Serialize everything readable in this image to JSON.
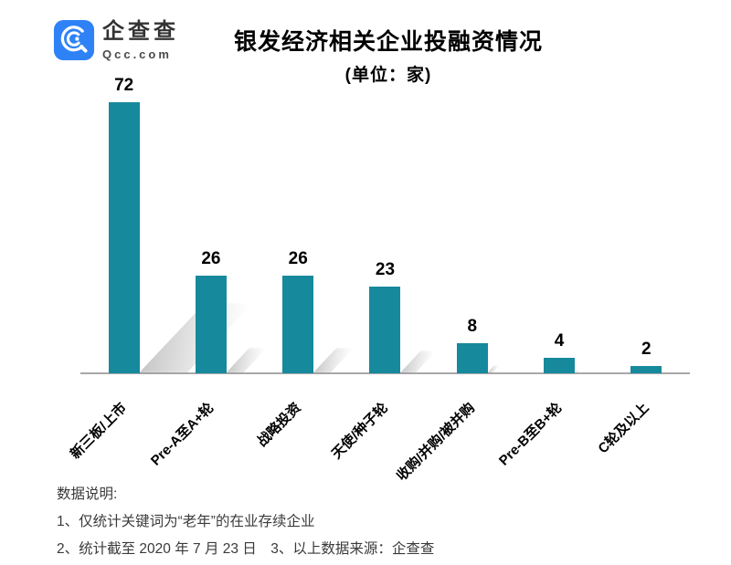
{
  "logo": {
    "name": "企查查",
    "domain": "Qcc.com"
  },
  "header": {
    "title": "银发经济相关企业投融资情况",
    "subtitle": "(单位：家)"
  },
  "colors": {
    "bar": "#17899c",
    "axis": "#a8a8a8",
    "logo_blue": "#2e82f6"
  },
  "chart_data": {
    "type": "bar",
    "title": "银发经济相关企业投融资情况",
    "unit_label": "(单位：家)",
    "categories": [
      "新三板/上市",
      "Pre-A至A+轮",
      "战略投资",
      "天使/种子轮",
      "收购/并购/被并购",
      "Pre-B至B+轮",
      "C轮及以上"
    ],
    "values": [
      72,
      26,
      26,
      23,
      8,
      4,
      2
    ],
    "ylim": [
      0,
      72
    ],
    "xlabel": "",
    "ylabel": "",
    "grid": false,
    "legend": false,
    "data_labels": true,
    "bar_color": "#17899c",
    "category_label_rotation_deg": -45
  },
  "notes": {
    "heading": "数据说明:",
    "line1": "1、仅统计关键词为“老年”的在业存续企业",
    "line2": "2、统计截至 2020 年 7 月 23 日　3、以上数据来源：企查查"
  }
}
